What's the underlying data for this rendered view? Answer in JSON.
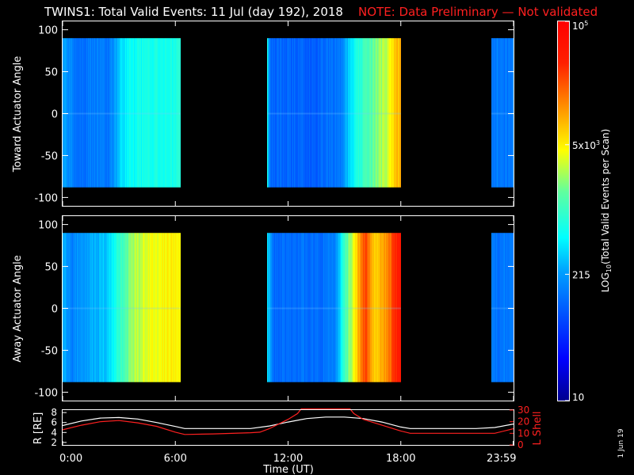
{
  "title": {
    "main": "TWINS1: Total Valid Events: 11 Jul (day 192), 2018",
    "note": "NOTE: Data Preliminary — Not validated"
  },
  "chart_data": [
    {
      "type": "heatmap",
      "ylabel": "Toward Actuator Angle",
      "ylim": [
        -110,
        110
      ],
      "yticks": [
        "100",
        "50",
        "0",
        "-50",
        "-100"
      ],
      "ytick_values": [
        100,
        50,
        0,
        -50,
        -100
      ],
      "xlim": [
        0,
        24
      ],
      "angle_range": [
        -88,
        90
      ],
      "segments": [
        {
          "t_start": 0.0,
          "t_end": 6.3,
          "profile": [
            [
              0.0,
              0.35
            ],
            [
              0.8,
              0.26
            ],
            [
              2.0,
              0.3
            ],
            [
              2.4,
              0.26
            ],
            [
              3.0,
              0.38
            ],
            [
              3.6,
              0.44
            ],
            [
              6.3,
              0.47
            ]
          ]
        },
        {
          "t_start": 10.9,
          "t_end": 18.0,
          "profile": [
            [
              10.9,
              0.44
            ],
            [
              11.05,
              0.26
            ],
            [
              13.5,
              0.25
            ],
            [
              14.8,
              0.28
            ],
            [
              15.3,
              0.4
            ],
            [
              15.8,
              0.48
            ],
            [
              16.6,
              0.56
            ],
            [
              17.3,
              0.62
            ],
            [
              17.7,
              0.72
            ],
            [
              18.0,
              0.74
            ]
          ]
        },
        {
          "t_start": 22.8,
          "t_end": 23.99,
          "profile": [
            [
              22.8,
              0.28
            ],
            [
              23.99,
              0.28
            ]
          ]
        }
      ]
    },
    {
      "type": "heatmap",
      "ylabel": "Away Actuator Angle",
      "ylim": [
        -110,
        110
      ],
      "yticks": [
        "100",
        "50",
        "0",
        "-50",
        "-100"
      ],
      "ytick_values": [
        100,
        50,
        0,
        -50,
        -100
      ],
      "xlim": [
        0,
        24
      ],
      "angle_range": [
        -88,
        90
      ],
      "segments": [
        {
          "t_start": 0.0,
          "t_end": 6.3,
          "profile": [
            [
              0.0,
              0.36
            ],
            [
              0.5,
              0.3
            ],
            [
              2.3,
              0.38
            ],
            [
              3.0,
              0.48
            ],
            [
              3.6,
              0.58
            ],
            [
              4.4,
              0.64
            ],
            [
              6.3,
              0.68
            ]
          ]
        },
        {
          "t_start": 10.9,
          "t_end": 18.0,
          "profile": [
            [
              10.9,
              0.4
            ],
            [
              11.2,
              0.26
            ],
            [
              14.5,
              0.28
            ],
            [
              15.0,
              0.5
            ],
            [
              15.6,
              0.68
            ],
            [
              16.1,
              0.86
            ],
            [
              16.6,
              0.7
            ],
            [
              17.3,
              0.78
            ],
            [
              17.8,
              0.9
            ],
            [
              18.0,
              0.92
            ]
          ]
        },
        {
          "t_start": 22.8,
          "t_end": 23.99,
          "profile": [
            [
              22.8,
              0.28
            ],
            [
              23.99,
              0.28
            ]
          ]
        }
      ]
    },
    {
      "type": "line",
      "ylabel": "R [RE]",
      "ylabel_right": "L Shell",
      "xlabel": "Time (UT)",
      "xlim": [
        0,
        24
      ],
      "ylim_left": [
        1.5,
        8.5
      ],
      "ylim_right": [
        0,
        30
      ],
      "yticks_left": [
        "8",
        "6",
        "4",
        "2"
      ],
      "ytick_values_left": [
        8,
        6,
        4,
        2
      ],
      "yticks_right": [
        "30",
        "20",
        "10",
        "0"
      ],
      "ytick_values_right": [
        30,
        20,
        10,
        0
      ],
      "xticks": [
        "0:00",
        "6:00",
        "12:00",
        "18:00",
        "23:59"
      ],
      "xtick_values": [
        0,
        6,
        12,
        18,
        23.98
      ],
      "series": [
        {
          "color": "#ffffff",
          "axis": "left",
          "x": [
            0,
            1,
            2,
            3,
            4,
            5,
            6,
            6.5,
            8,
            10,
            11,
            12,
            13,
            14,
            15,
            16,
            17,
            18,
            18.5,
            20,
            22,
            23,
            24
          ],
          "y": [
            5.4,
            6.3,
            6.9,
            7.0,
            6.7,
            6.0,
            5.2,
            4.8,
            4.8,
            4.8,
            5.3,
            6.1,
            6.8,
            7.1,
            7.1,
            6.8,
            6.1,
            5.1,
            4.8,
            4.8,
            4.8,
            5.0,
            5.7
          ]
        },
        {
          "color": "#ff2020",
          "axis": "right",
          "x": [
            0,
            1,
            2,
            3,
            4,
            5,
            6,
            6.5,
            8,
            10,
            10.5,
            11,
            12,
            12.5,
            12.7,
            15.3,
            15.5,
            16,
            17,
            18,
            18.5,
            20,
            22,
            23,
            24
          ],
          "y": [
            13,
            17,
            20,
            21,
            19,
            16,
            11,
            9,
            9.5,
            10.5,
            11,
            14,
            22,
            27,
            31,
            31,
            27,
            22,
            17,
            12,
            10,
            10,
            10,
            10,
            14
          ]
        }
      ]
    }
  ],
  "colorbar": {
    "label": "LOG10(Total Valid Events per Scan)",
    "ticks": [
      "10^5",
      "5x10^3",
      "215",
      "10"
    ],
    "tick_values": [
      100000,
      5000,
      215,
      10
    ],
    "range": [
      10,
      100000
    ]
  },
  "date_stamp": "1 Jun 19"
}
